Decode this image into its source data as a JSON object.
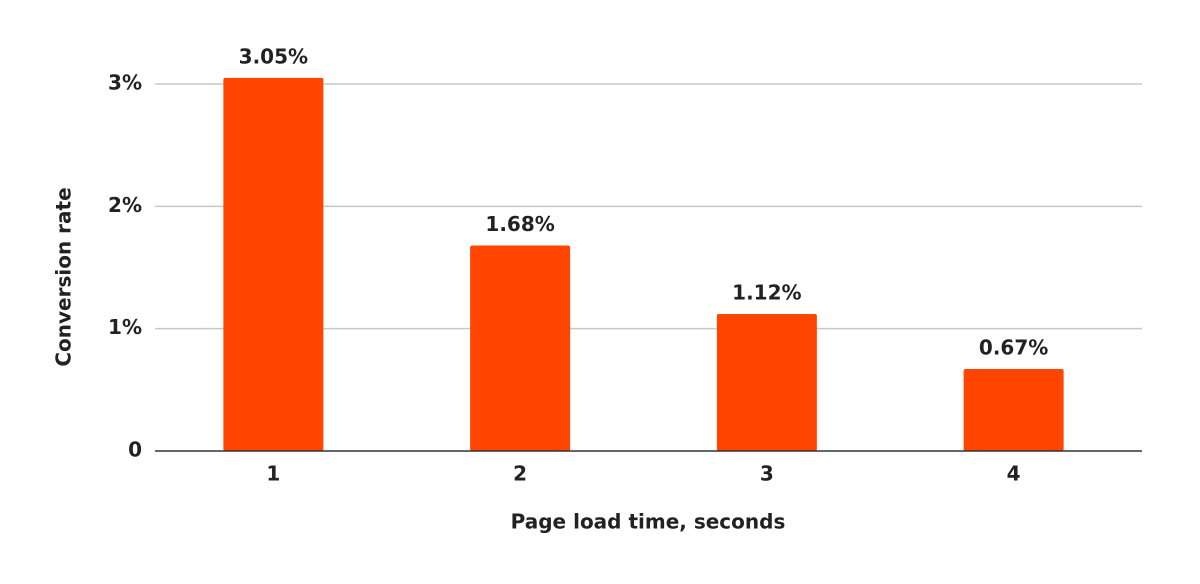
{
  "chart_data": {
    "type": "bar",
    "x_label": "Page load time, seconds",
    "y_label": "Conversion rate",
    "categories": [
      "1",
      "2",
      "3",
      "4"
    ],
    "values": [
      3.05,
      1.68,
      1.12,
      0.67
    ],
    "value_labels": [
      "3.05%",
      "1.68%",
      "1.12%",
      "0.67%"
    ],
    "color": "#ff4500",
    "ylim": [
      0,
      3
    ],
    "yticks": [
      0,
      {
        "value": 1,
        "label": "1%"
      },
      {
        "value": 2,
        "label": "2%"
      },
      {
        "value": 3,
        "label": "3%"
      }
    ],
    "grid": true
  }
}
